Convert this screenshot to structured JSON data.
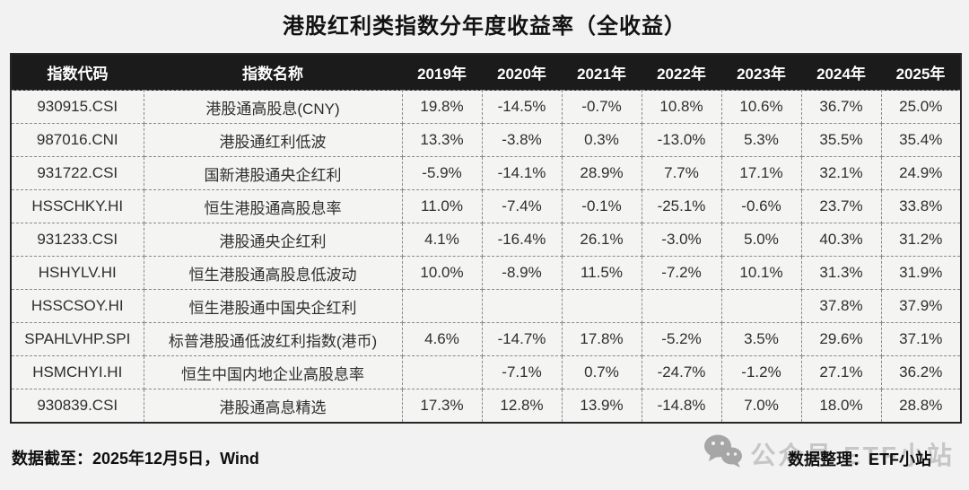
{
  "title": "港股红利类指数分年度收益率（全收益）",
  "chart_data": {
    "type": "table",
    "title": "港股红利类指数分年度收益率（全收益）",
    "columns": [
      "指数代码",
      "指数名称",
      "2019年",
      "2020年",
      "2021年",
      "2022年",
      "2023年",
      "2024年",
      "2025年"
    ],
    "rows": [
      [
        "930915.CSI",
        "港股通高股息(CNY)",
        "19.8%",
        "-14.5%",
        "-0.7%",
        "10.8%",
        "10.6%",
        "36.7%",
        "25.0%"
      ],
      [
        "987016.CNI",
        "港股通红利低波",
        "13.3%",
        "-3.8%",
        "0.3%",
        "-13.0%",
        "5.3%",
        "35.5%",
        "35.4%"
      ],
      [
        "931722.CSI",
        "国新港股通央企红利",
        "-5.9%",
        "-14.1%",
        "28.9%",
        "7.7%",
        "17.1%",
        "32.1%",
        "24.9%"
      ],
      [
        "HSSCHKY.HI",
        "恒生港股通高股息率",
        "11.0%",
        "-7.4%",
        "-0.1%",
        "-25.1%",
        "-0.6%",
        "23.7%",
        "33.8%"
      ],
      [
        "931233.CSI",
        "港股通央企红利",
        "4.1%",
        "-16.4%",
        "26.1%",
        "-3.0%",
        "5.0%",
        "40.3%",
        "31.2%"
      ],
      [
        "HSHYLV.HI",
        "恒生港股通高股息低波动",
        "10.0%",
        "-8.9%",
        "11.5%",
        "-7.2%",
        "10.1%",
        "31.3%",
        "31.9%"
      ],
      [
        "HSSCSOY.HI",
        "恒生港股通中国央企红利",
        "",
        "",
        "",
        "",
        "",
        "37.8%",
        "37.9%"
      ],
      [
        "SPAHLVHP.SPI",
        "标普港股通低波红利指数(港币)",
        "4.6%",
        "-14.7%",
        "17.8%",
        "-5.2%",
        "3.5%",
        "29.6%",
        "37.1%"
      ],
      [
        "HSMCHYI.HI",
        "恒生中国内地企业高股息率",
        "",
        "-7.1%",
        "0.7%",
        "-24.7%",
        "-1.2%",
        "27.1%",
        "36.2%"
      ],
      [
        "930839.CSI",
        "港股通高息精选",
        "17.3%",
        "12.8%",
        "13.9%",
        "-14.8%",
        "7.0%",
        "18.0%",
        "28.8%"
      ]
    ]
  },
  "footer": {
    "data_asof": "数据截至：2025年12月5日，Wind",
    "credit": "数据整理：ETF小站",
    "watermark_text": "公众号 ETF小站"
  },
  "icons": {
    "wechat": "wechat-icon"
  },
  "colors": {
    "page_bg": "#f2f2f2",
    "header_bg": "#1b1b1b",
    "header_text": "#ffffff",
    "cell_bg": "#f4f4f3",
    "body_text": "#2e2e2e",
    "border_dashed": "#8a8a8a",
    "outer_border": "#262626",
    "watermark_gray": "#c6c6c6",
    "wechat_icon_gray": "#a6a6a6"
  }
}
